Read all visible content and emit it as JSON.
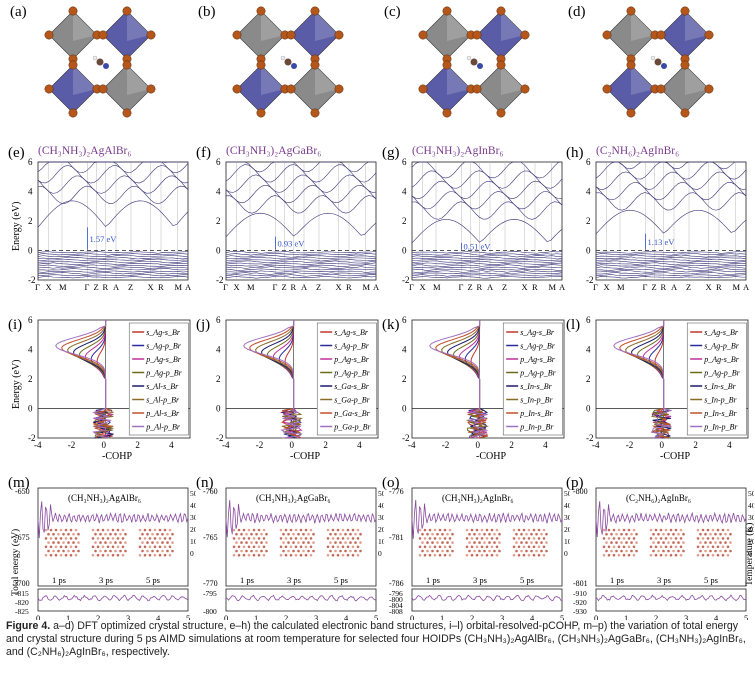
{
  "colors": {
    "band": "#3a3478",
    "purple": "#7b3a8f",
    "octa_blue": "#5a5ca8",
    "octa_gray": "#8a8a8a",
    "atom": "#b5561a"
  },
  "structures": [
    {
      "label": "(a)"
    },
    {
      "label": "(b)"
    },
    {
      "label": "(c)"
    },
    {
      "label": "(d)"
    }
  ],
  "bands": [
    {
      "label": "(e)",
      "title": "(CH₃NH₃)₂AgAlBr₆",
      "gap": "1.57 eV"
    },
    {
      "label": "(f)",
      "title": "(CH₃NH₃)₂AgGaBr₆",
      "gap": "0.93 eV"
    },
    {
      "label": "(g)",
      "title": "(CH₃NH₃)₂AgInBr₆",
      "gap": "0.51 eV"
    },
    {
      "label": "(h)",
      "title": "(C₂NH₆)₂AgInBr₆",
      "gap": "1.13 eV"
    }
  ],
  "band_axis": {
    "ylabel": "Energy (eV)",
    "yticks": [
      "6",
      "4",
      "2",
      "0",
      "-2"
    ],
    "kpoints": [
      "Γ",
      "X",
      "M",
      "Γ",
      "Z",
      "R",
      "A",
      "Z",
      "X",
      "R",
      "M",
      "A"
    ]
  },
  "cohp": [
    {
      "label": "(i)",
      "legend": [
        "s_Ag-s_Br",
        "s_Ag-p_Br",
        "p_Ag-s_Br",
        "p_Ag-p_Br",
        "s_Al-s_Br",
        "s_Al-p_Br",
        "p_Al-s_Br",
        "p_Al-p_Br"
      ]
    },
    {
      "label": "(j)",
      "legend": [
        "s_Ag-s_Br",
        "s_Ag-p_Br",
        "p_Ag-s_Br",
        "p_Ag-p_Br",
        "s_Ga-s_Br",
        "s_Ga-p_Br",
        "p_Ga-s_Br",
        "p_Ga-p_Br"
      ]
    },
    {
      "label": "(k)",
      "legend": [
        "s_Ag-s_Br",
        "s_Ag-p_Br",
        "p_Ag-s_Br",
        "p_Ag-p_Br",
        "s_In-s_Br",
        "s_In-p_Br",
        "p_In-s_Br",
        "p_In-p_Br"
      ]
    },
    {
      "label": "(l)",
      "legend": [
        "s_Ag-s_Br",
        "s_Ag-p_Br",
        "p_Ag-s_Br",
        "p_Ag-p_Br",
        "s_In-s_Br",
        "s_In-p_Br",
        "p_In-s_Br",
        "p_In-p_Br"
      ]
    }
  ],
  "cohp_axis": {
    "xlabel": "-COHP",
    "ylabel": "Energy (eV)",
    "xticks": [
      "-4",
      "-2",
      "0",
      "2",
      "4"
    ],
    "yticks": [
      "6",
      "4",
      "2",
      "0",
      "-2"
    ],
    "legend_colors": [
      "#c0392b",
      "#2b2b9a",
      "#c0309a",
      "#6b6b1a",
      "#1a1a6a",
      "#8a6a2a",
      "#c0502b",
      "#a070c0"
    ]
  },
  "md": [
    {
      "label": "(m)",
      "title": "(CH₃NH₃)₂AgAlBr₆",
      "ytop": [
        "-650",
        "-675",
        "-700"
      ],
      "ybot": [
        "-815",
        "-820",
        "-825"
      ]
    },
    {
      "label": "(n)",
      "title": "(CH₃NH₃)₂AgGaBr₆",
      "ytop": [
        "-760",
        "-765",
        "-770"
      ],
      "ybot": [
        "-795",
        "-800"
      ]
    },
    {
      "label": "(o)",
      "title": "(CH₃NH₃)₂AgInBr₆",
      "ytop": [
        "-776",
        "-781",
        "-786"
      ],
      "ybot": [
        "-796",
        "-800",
        "-804",
        "-808"
      ]
    },
    {
      "label": "(p)",
      "title": "(C₂NH₆)₂AgInBr₆",
      "ytop": [
        "-800",
        "-801"
      ],
      "ybot": [
        "-910",
        "-920",
        "-930"
      ]
    }
  ],
  "md_axis": {
    "xlabel": "Time (ps)",
    "ylabel_left": "Total energy (eV)",
    "ylabel_right": "Temperature (K)",
    "xticks": [
      "0",
      "1",
      "2",
      "3",
      "4",
      "5"
    ],
    "tticks": [
      "500",
      "400",
      "300",
      "200",
      "100",
      "0"
    ],
    "snapshots": [
      "1 ps",
      "3 ps",
      "5 ps"
    ]
  },
  "caption": {
    "fig": "Figure 4.",
    "text": " a–d) DFT optimized crystal structure, e–h) the calculated electronic band structures, i–l) orbital-resolved-pCOHP, m–p) the variation of total energy and crystal structure during 5 ps AIMD simulations at room temperature for selected four HOIDPs (CH₃NH₃)₂AgAlBr₆, (CH₃NH₃)₂AgGaBr₆, (CH₃NH₃)₂AgInBr₆, and (C₂NH₆)₂AgInBr₆, respectively."
  }
}
